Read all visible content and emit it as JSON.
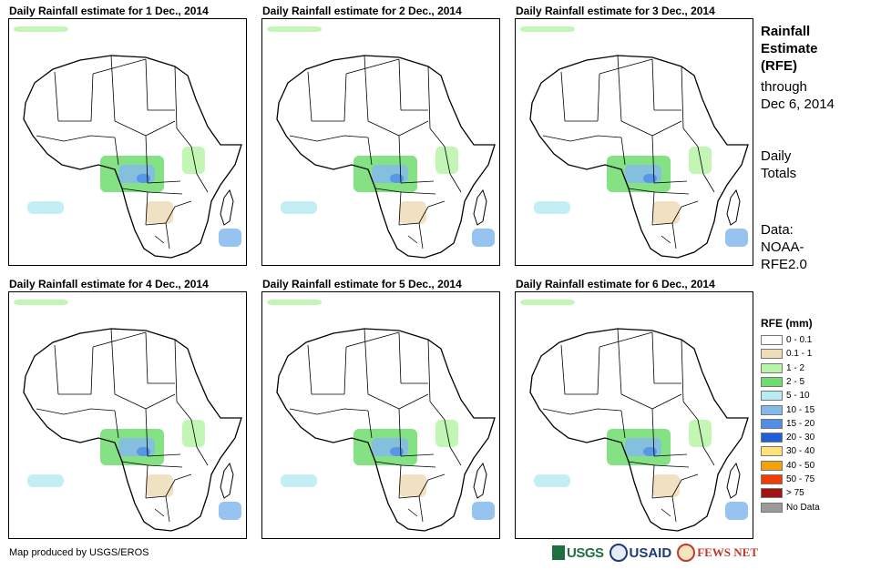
{
  "panels": [
    {
      "title": "Daily Rainfall estimate for 1 Dec., 2014"
    },
    {
      "title": "Daily Rainfall estimate for 2 Dec., 2014"
    },
    {
      "title": "Daily Rainfall estimate for 3 Dec., 2014"
    },
    {
      "title": "Daily Rainfall estimate for 4 Dec., 2014"
    },
    {
      "title": "Daily Rainfall estimate for 5 Dec., 2014"
    },
    {
      "title": "Daily Rainfall estimate for 6 Dec., 2014"
    }
  ],
  "side": {
    "title_line1": "Rainfall",
    "title_line2": "Estimate",
    "title_line3": "(RFE)",
    "through_line1": "through",
    "through_line2": "Dec 6, 2014",
    "daily_line1": "Daily",
    "daily_line2": "Totals",
    "data_line1": "Data:",
    "data_line2": "NOAA-",
    "data_line3": "RFE2.0"
  },
  "legend": {
    "title": "RFE (mm)",
    "items": [
      {
        "label": "0 - 0.1",
        "color": "#ffffff"
      },
      {
        "label": "0.1 - 1",
        "color": "#efdcb9"
      },
      {
        "label": "1 - 2",
        "color": "#b8f5a8"
      },
      {
        "label": "2 - 5",
        "color": "#6fdc6f"
      },
      {
        "label": "5 - 10",
        "color": "#b9ecf2"
      },
      {
        "label": "10 - 15",
        "color": "#84b9ec"
      },
      {
        "label": "15 - 20",
        "color": "#4f8fe6"
      },
      {
        "label": "20 - 30",
        "color": "#1f5fd6"
      },
      {
        "label": "30 - 40",
        "color": "#ffe27a"
      },
      {
        "label": "40 - 50",
        "color": "#f4a20a"
      },
      {
        "label": "50 - 75",
        "color": "#f23c05"
      },
      {
        "label": "> 75",
        "color": "#a01414"
      },
      {
        "label": "No Data",
        "color": "#9a9a9a"
      }
    ]
  },
  "footer": {
    "credit": "Map produced by USGS/EROS"
  },
  "logos": {
    "usgs": "USGS",
    "usaid": "USAID",
    "fews": "FEWS NET"
  }
}
